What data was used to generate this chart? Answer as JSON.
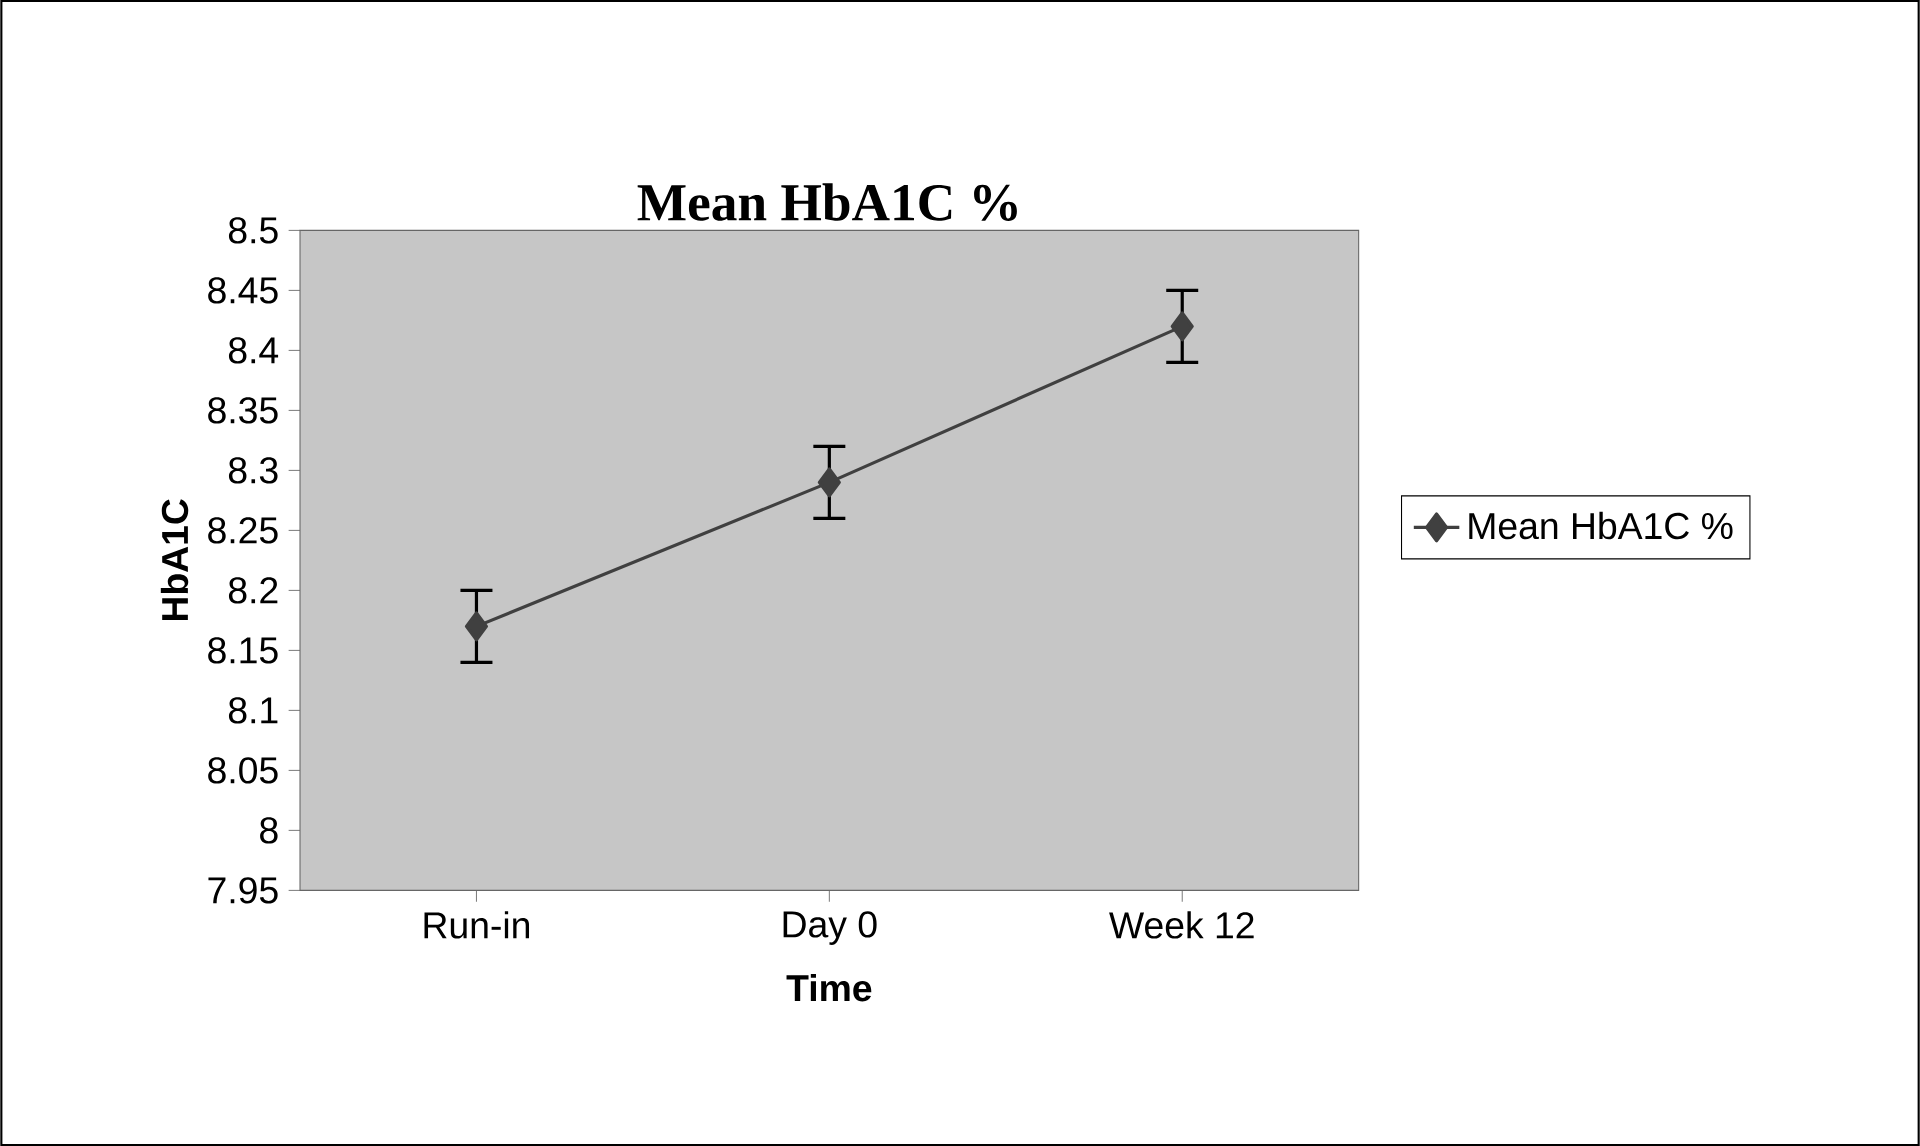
{
  "chart_data": {
    "type": "line",
    "title": "Mean HbA1C %",
    "xlabel": "Time",
    "ylabel": "HbA1C",
    "categories": [
      "Run-in",
      "Day 0",
      "Week 12"
    ],
    "series": [
      {
        "name": "Mean HbA1C %",
        "color": "#404040",
        "values": [
          8.17,
          8.29,
          8.42
        ],
        "errors": [
          0.03,
          0.03,
          0.03
        ]
      }
    ],
    "ylim": [
      7.95,
      8.5
    ],
    "yticks": [
      7.95,
      8,
      8.05,
      8.1,
      8.15,
      8.2,
      8.25,
      8.3,
      8.35,
      8.4,
      8.45,
      8.5
    ],
    "marker": "diamond",
    "line_style": "solid",
    "legend": "right",
    "grid": false
  }
}
